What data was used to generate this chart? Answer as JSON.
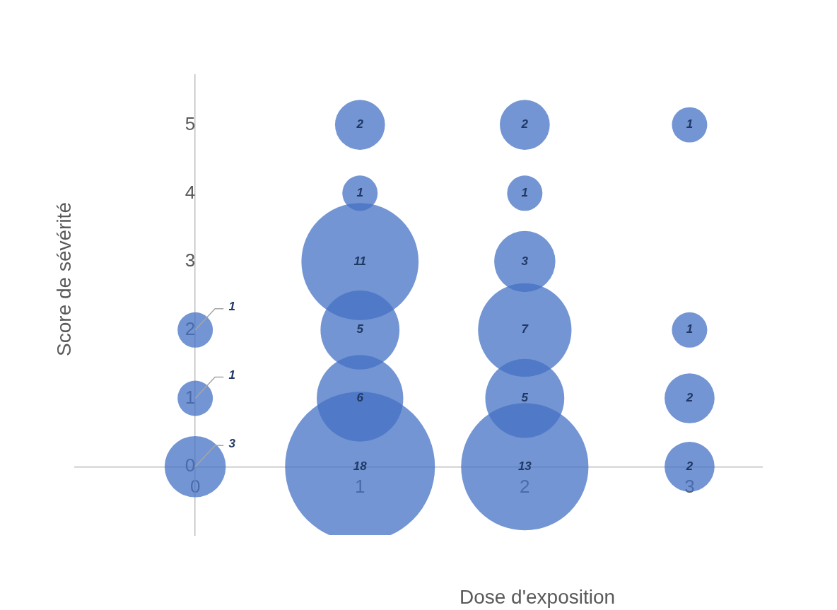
{
  "chart_data": {
    "type": "bubble",
    "xlabel": "Dose d'exposition",
    "ylabel": "Score de sévérité",
    "x": [
      0,
      0,
      0,
      1,
      1,
      1,
      1,
      1,
      1,
      2,
      2,
      2,
      2,
      2,
      2,
      3,
      3,
      3,
      3
    ],
    "values": [
      2,
      1,
      0,
      5,
      4,
      3,
      2,
      1,
      0,
      5,
      4,
      3,
      2,
      1,
      0,
      5,
      2,
      1,
      0
    ],
    "sizes": [
      1,
      1,
      3,
      2,
      1,
      11,
      5,
      6,
      18,
      2,
      1,
      3,
      7,
      5,
      13,
      1,
      1,
      2,
      2
    ],
    "value_labels": [
      "1",
      "1",
      "3",
      "2",
      "1",
      "11",
      "5",
      "6",
      "18",
      "2",
      "1",
      "3",
      "7",
      "5",
      "13",
      "1",
      "1",
      "2",
      "2"
    ],
    "color": "#4472c4",
    "xlim": [
      -0.73,
      3.44
    ],
    "xticks": [
      0,
      1,
      2,
      3
    ],
    "ylim": [
      -1,
      5.73
    ],
    "yticks": [
      0,
      1,
      2,
      3,
      4,
      5
    ],
    "grid": false,
    "legend": false
  }
}
